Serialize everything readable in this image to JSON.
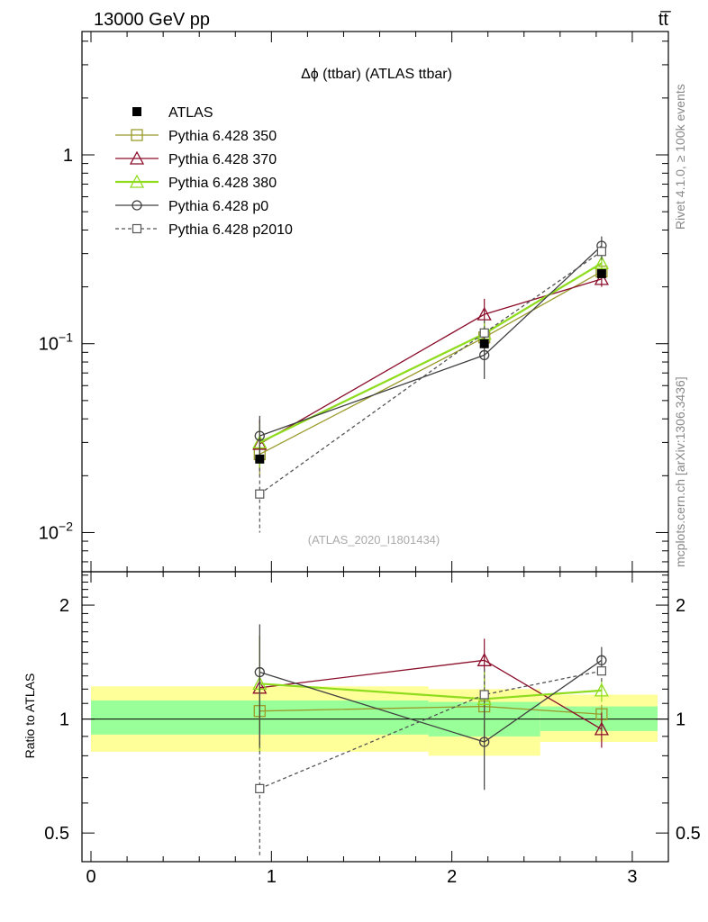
{
  "header": {
    "left": "13000 GeV pp",
    "right": "tt̅"
  },
  "side_labels": {
    "rivet": "Rivet 4.1.0, ≥ 100k events",
    "mcplots": "mcplots.cern.ch [arXiv:1306.3436]"
  },
  "chart_data": {
    "type": "line",
    "title": "Δϕ (ttbar) (ATLAS ttbar)",
    "analysis_tag": "(ATLAS_2020_I1801434)",
    "xlabel": "",
    "ylabel_top": "",
    "ylabel_ratio": "Ratio to ATLAS",
    "xlim": [
      -0.05,
      3.2
    ],
    "ylim_top": [
      0.0062,
      4.5
    ],
    "ylim_ratio": [
      0.42,
      2.45
    ],
    "y_scale": "log",
    "x_ticks": [
      "0",
      "1",
      "2",
      "3"
    ],
    "y_ticks_top": [
      {
        "base": "1",
        "exp": ""
      },
      {
        "base": "10",
        "exp": "−1"
      },
      {
        "base": "10",
        "exp": "−2"
      }
    ],
    "y_ticks_ratio": [
      "2",
      "1",
      "0.5"
    ],
    "legend_position": "top-left",
    "bins": [
      {
        "lo": 0.0,
        "hi": 1.87
      },
      {
        "lo": 1.87,
        "hi": 2.49
      },
      {
        "lo": 2.49,
        "hi": 3.14
      }
    ],
    "data": {
      "name": "ATLAS",
      "x": [
        0.935,
        2.18,
        2.83
      ],
      "y": [
        0.0245,
        0.1,
        0.235
      ],
      "band_inner": [
        [
          0.91,
          1.12
        ],
        [
          0.9,
          1.11
        ],
        [
          0.93,
          1.08
        ]
      ],
      "band_outer": [
        [
          0.82,
          1.22
        ],
        [
          0.8,
          1.2
        ],
        [
          0.87,
          1.16
        ]
      ]
    },
    "series": [
      {
        "name": "Pythia 6.428 350",
        "color": "#9a9a2a",
        "marker": "square",
        "dash": false,
        "y": [
          0.026,
          0.108,
          0.241
        ],
        "yerr_lo": [
          0.006,
          0.012,
          0.012
        ],
        "yerr_hi": [
          0.006,
          0.012,
          0.012
        ],
        "ratio": [
          1.05,
          1.08,
          1.03
        ],
        "ratio_err_lo": [
          0.22,
          0.2,
          0.06
        ],
        "ratio_err_hi": [
          0.22,
          0.2,
          0.06
        ]
      },
      {
        "name": "Pythia 6.428 370",
        "color": "#8b0e2b",
        "marker": "triangle",
        "dash": false,
        "y": [
          0.0295,
          0.143,
          0.22
        ],
        "yerr_lo": [
          0.008,
          0.03,
          0.02
        ],
        "yerr_hi": [
          0.01,
          0.03,
          0.02
        ],
        "ratio": [
          1.21,
          1.43,
          0.94
        ],
        "ratio_err_lo": [
          0.38,
          0.22,
          0.1
        ],
        "ratio_err_hi": [
          0.45,
          0.2,
          0.1
        ]
      },
      {
        "name": "Pythia 6.428 380",
        "color": "#8fdc1e",
        "marker": "triangle",
        "dash": false,
        "y": [
          0.03,
          0.113,
          0.267
        ],
        "yerr_lo": [
          0.008,
          0.02,
          0.02
        ],
        "yerr_hi": [
          0.008,
          0.02,
          0.02
        ],
        "ratio": [
          1.24,
          1.13,
          1.19
        ],
        "ratio_err_lo": [
          0.42,
          0.2,
          0.08
        ],
        "ratio_err_hi": [
          0.42,
          0.2,
          0.08
        ]
      },
      {
        "name": "Pythia 6.428 p0",
        "color": "#404040",
        "marker": "circle",
        "dash": false,
        "y": [
          0.0325,
          0.087,
          0.33
        ],
        "yerr_lo": [
          0.009,
          0.022,
          0.04
        ],
        "yerr_hi": [
          0.009,
          0.022,
          0.04
        ],
        "ratio": [
          1.33,
          0.87,
          1.43
        ],
        "ratio_err_lo": [
          0.48,
          0.22,
          0.12
        ],
        "ratio_err_hi": [
          0.45,
          0.22,
          0.12
        ]
      },
      {
        "name": "Pythia 6.428 p2010",
        "color": "#555555",
        "marker": "open-square-small",
        "dash": true,
        "y": [
          0.016,
          0.114,
          0.308
        ],
        "yerr_lo": [
          0.006,
          0.02,
          0.03
        ],
        "yerr_hi": [
          0.006,
          0.02,
          0.03
        ],
        "ratio": [
          0.655,
          1.16,
          1.34
        ],
        "ratio_err_lo": [
          0.27,
          0.2,
          0.1
        ],
        "ratio_err_hi": [
          0.27,
          0.2,
          0.1
        ]
      }
    ]
  }
}
